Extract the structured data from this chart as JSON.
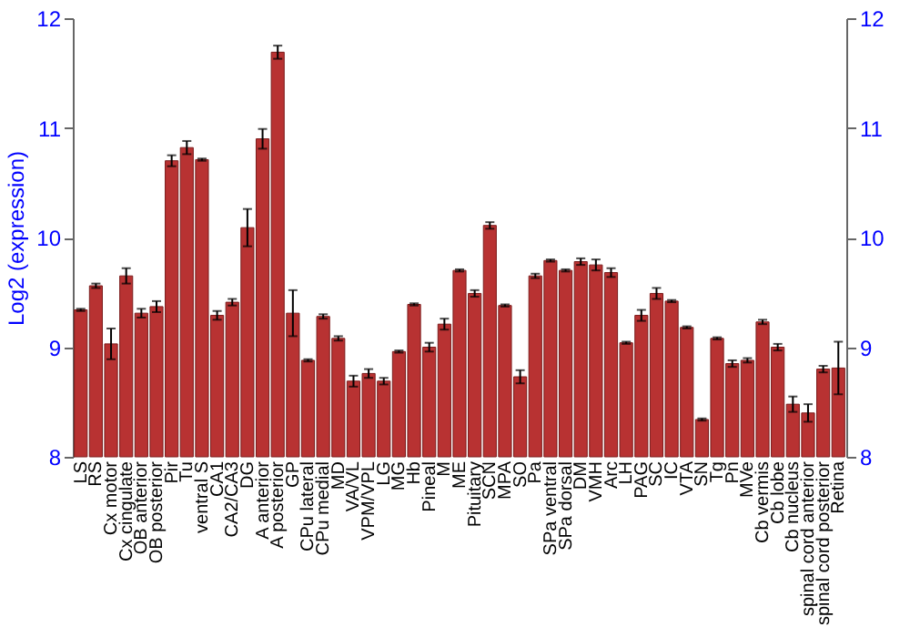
{
  "chart_data": {
    "type": "bar",
    "ylabel": "Log2 (expression)",
    "categories": [
      "LS",
      "RS",
      "Cx motor",
      "Cx cingulate",
      "OB anterior",
      "OB posterior",
      "Pir",
      "Tu",
      "ventral S",
      "CA1",
      "CA2/CA3",
      "DG",
      "A anterior",
      "A posterior",
      "GP",
      "CPu lateral",
      "CPu medial",
      "MD",
      "VA/VL",
      "VPM/VPL",
      "LG",
      "MG",
      "Hb",
      "Pineal",
      "M",
      "ME",
      "Pituitary",
      "SCN",
      "MPA",
      "SO",
      "Pa",
      "SPa ventral",
      "SPa dorsal",
      "DM",
      "VMH",
      "Arc",
      "LH",
      "PAG",
      "SC",
      "IC",
      "VTA",
      "SN",
      "Tg",
      "Pn",
      "MVe",
      "Cb vermis",
      "Cb lobe",
      "Cb nucleus",
      "spinal cord anterior",
      "spinal cord posterior",
      "Retina"
    ],
    "values": [
      9.34,
      9.56,
      9.03,
      9.65,
      9.31,
      9.37,
      10.7,
      10.82,
      10.71,
      9.29,
      9.41,
      10.09,
      10.9,
      11.69,
      9.31,
      8.88,
      9.28,
      9.08,
      8.69,
      8.76,
      8.69,
      8.96,
      9.39,
      9.0,
      9.21,
      9.7,
      9.49,
      10.11,
      9.38,
      8.73,
      9.65,
      9.79,
      9.7,
      9.78,
      9.75,
      9.68,
      9.04,
      9.29,
      9.49,
      9.42,
      9.18,
      8.34,
      9.08,
      8.85,
      8.88,
      9.23,
      9.0,
      8.48,
      8.4,
      8.8,
      8.81
    ],
    "errors": [
      0.01,
      0.02,
      0.14,
      0.07,
      0.04,
      0.05,
      0.05,
      0.06,
      0.01,
      0.04,
      0.03,
      0.17,
      0.09,
      0.06,
      0.21,
      0.01,
      0.02,
      0.02,
      0.05,
      0.04,
      0.03,
      0.01,
      0.01,
      0.04,
      0.05,
      0.01,
      0.03,
      0.03,
      0.01,
      0.06,
      0.02,
      0.01,
      0.01,
      0.03,
      0.05,
      0.04,
      0.01,
      0.05,
      0.05,
      0.01,
      0.01,
      0.01,
      0.01,
      0.03,
      0.02,
      0.02,
      0.03,
      0.07,
      0.08,
      0.03,
      0.24
    ],
    "color": "#b83232",
    "ylim": [
      8,
      12
    ],
    "yticks": [
      8,
      9,
      10,
      11,
      12
    ],
    "y2lim": [
      8,
      12
    ],
    "y2ticks": [
      8,
      9,
      10,
      11,
      12
    ],
    "grid": "y"
  }
}
